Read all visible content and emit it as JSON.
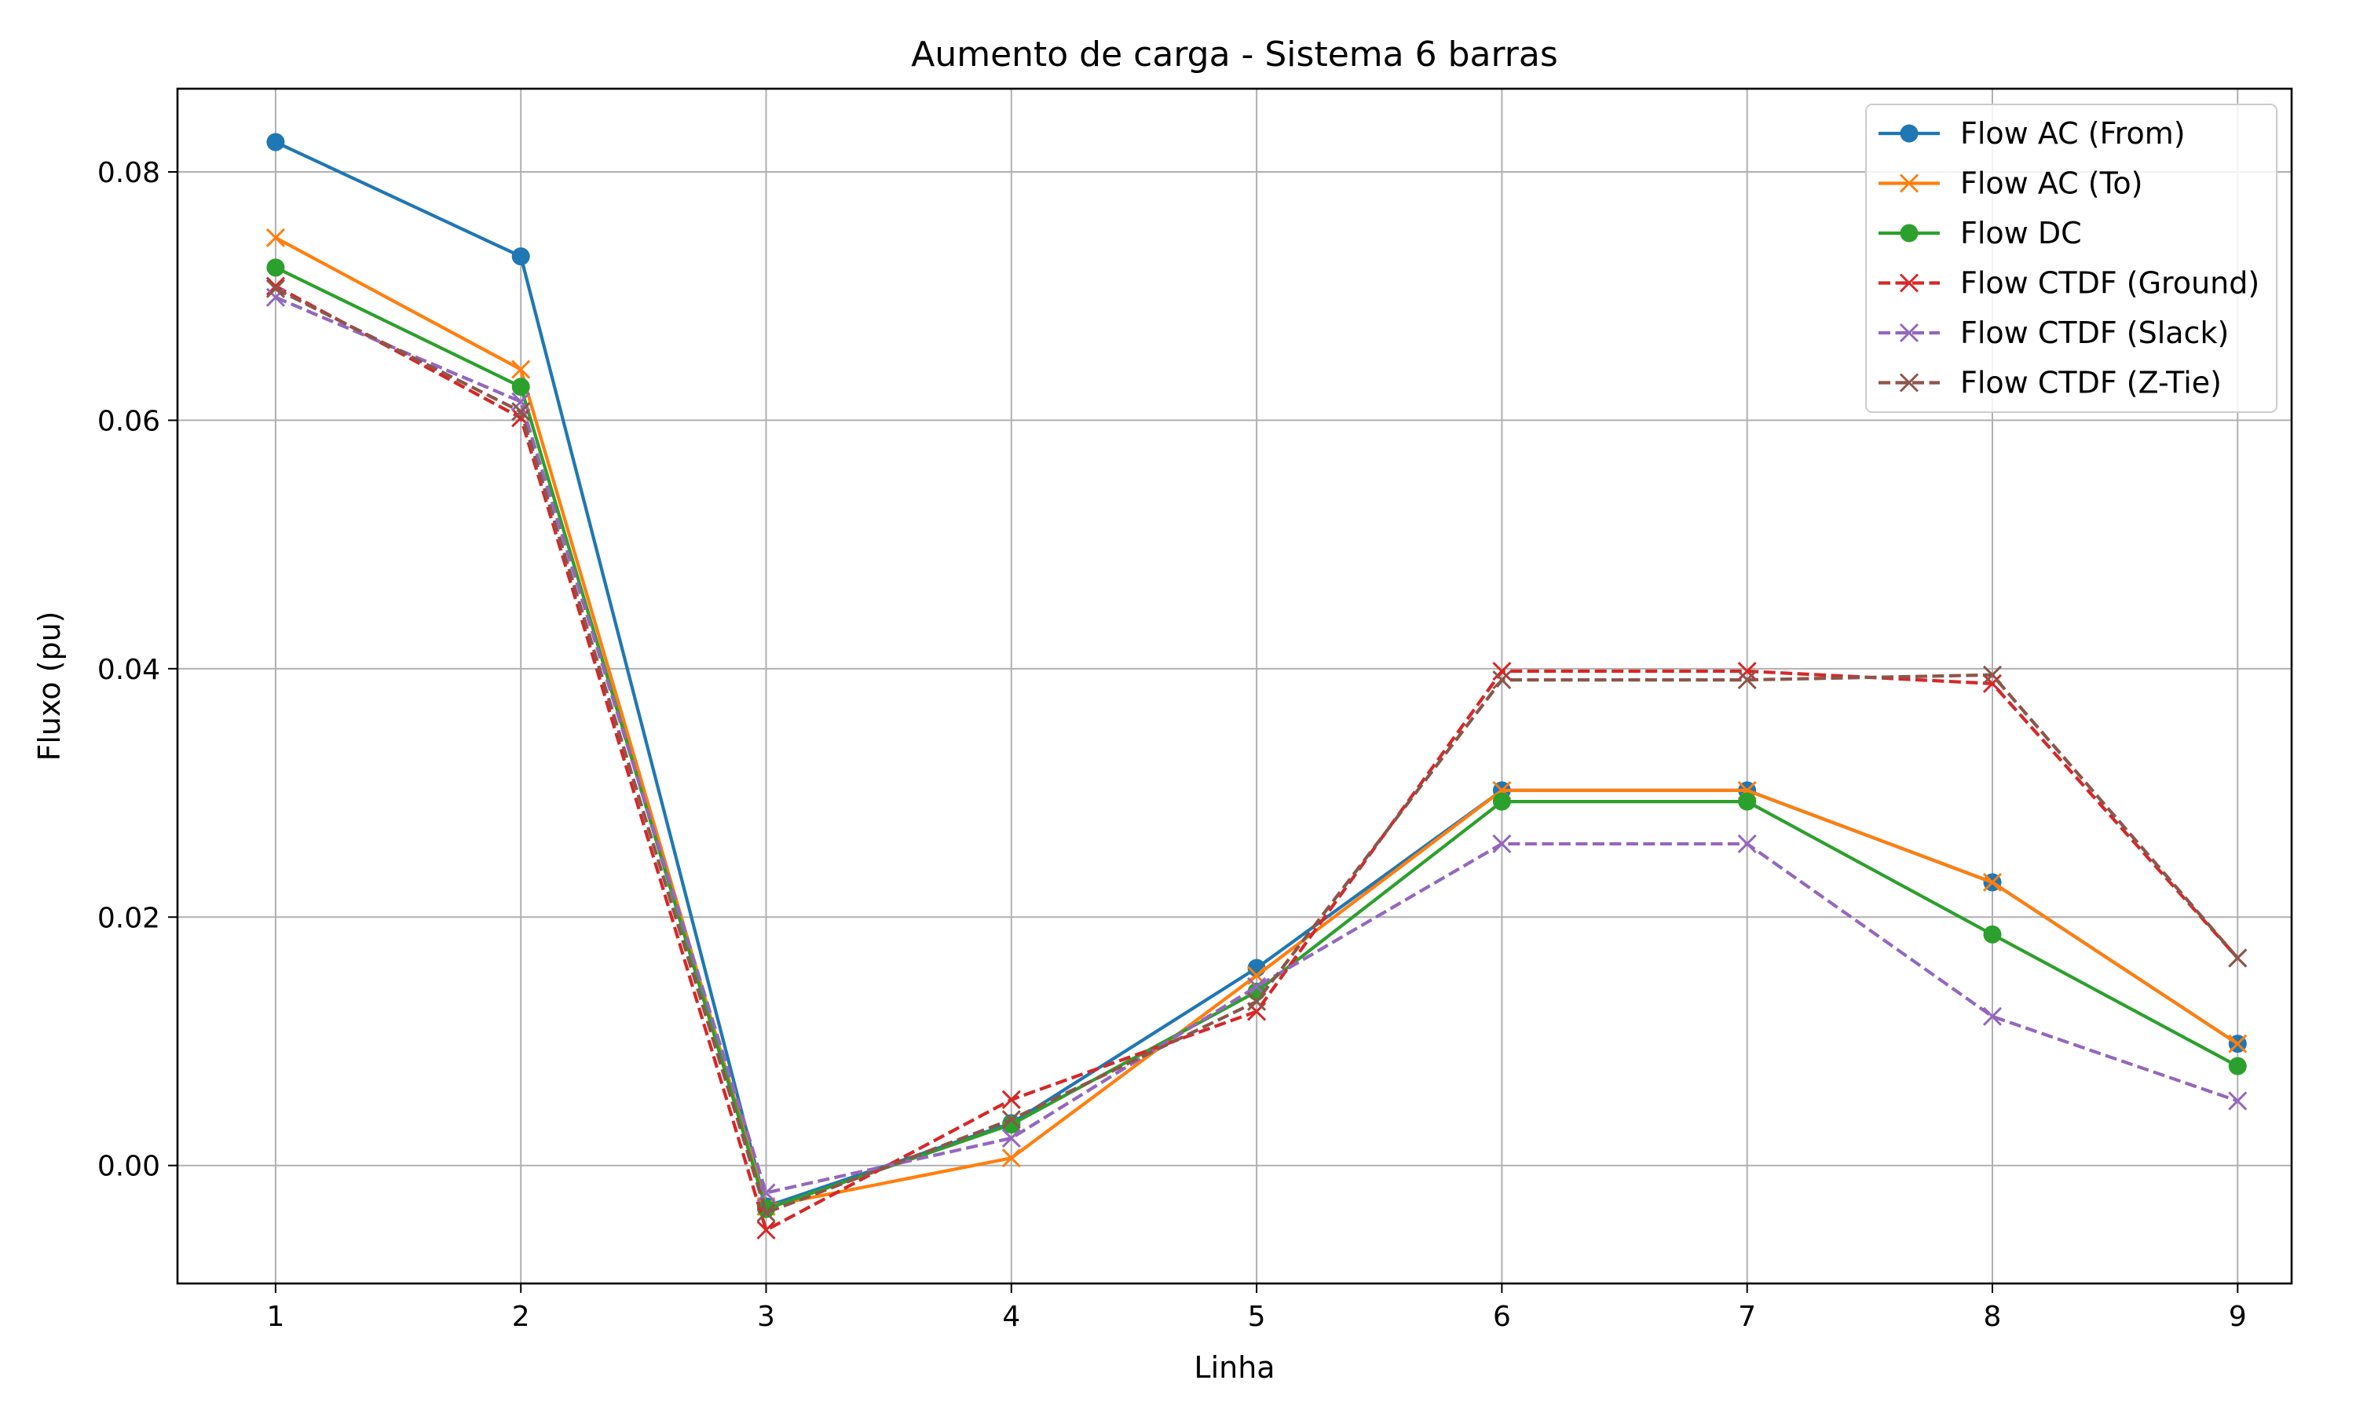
{
  "chart_data": {
    "type": "line",
    "title": "Aumento de carga - Sistema 6 barras",
    "xlabel": "Linha",
    "ylabel": "Fluxo (pu)",
    "x": [
      1,
      2,
      3,
      4,
      5,
      6,
      7,
      8,
      9
    ],
    "xlim": [
      0.6,
      9.22
    ],
    "ylim": [
      -0.0095,
      0.0867
    ],
    "xticks": [
      "1",
      "2",
      "3",
      "4",
      "5",
      "6",
      "7",
      "8",
      "9"
    ],
    "yticks": [
      0.0,
      0.02,
      0.04,
      0.06,
      0.08
    ],
    "ytick_labels": [
      "0.00",
      "0.02",
      "0.04",
      "0.06",
      "0.08"
    ],
    "grid": true,
    "legend_position": "top-right",
    "series": [
      {
        "name": "Flow AC (From)",
        "color": "#1f77b4",
        "linestyle": "solid",
        "marker": "circle",
        "values": [
          0.0824,
          0.0732,
          -0.0033,
          0.0034,
          0.0159,
          0.0302,
          0.0302,
          0.0228,
          0.0098
        ]
      },
      {
        "name": "Flow AC (To)",
        "color": "#ff7f0e",
        "linestyle": "solid",
        "marker": "x",
        "values": [
          0.0747,
          0.0641,
          -0.0033,
          0.0006,
          0.0153,
          0.0302,
          0.0302,
          0.0228,
          0.0098
        ]
      },
      {
        "name": "Flow DC",
        "color": "#2ca02c",
        "linestyle": "solid",
        "marker": "circle",
        "values": [
          0.0723,
          0.0627,
          -0.0035,
          0.0033,
          0.014,
          0.0293,
          0.0293,
          0.0186,
          0.008
        ]
      },
      {
        "name": "Flow CTDF (Ground)",
        "color": "#d62728",
        "linestyle": "dashed",
        "marker": "x",
        "values": [
          0.0708,
          0.0602,
          -0.0052,
          0.0053,
          0.0124,
          0.0398,
          0.0398,
          0.0388,
          0.0167
        ]
      },
      {
        "name": "Flow CTDF (Slack)",
        "color": "#9467bd",
        "linestyle": "dashed",
        "marker": "x",
        "values": [
          0.0699,
          0.0615,
          -0.0022,
          0.0022,
          0.0144,
          0.0259,
          0.0259,
          0.012,
          0.0052
        ]
      },
      {
        "name": "Flow CTDF (Z-Tie)",
        "color": "#8c564b",
        "linestyle": "dashed",
        "marker": "x",
        "values": [
          0.0706,
          0.0607,
          -0.0038,
          0.0037,
          0.0132,
          0.0391,
          0.0391,
          0.0395,
          0.0167
        ]
      }
    ]
  }
}
